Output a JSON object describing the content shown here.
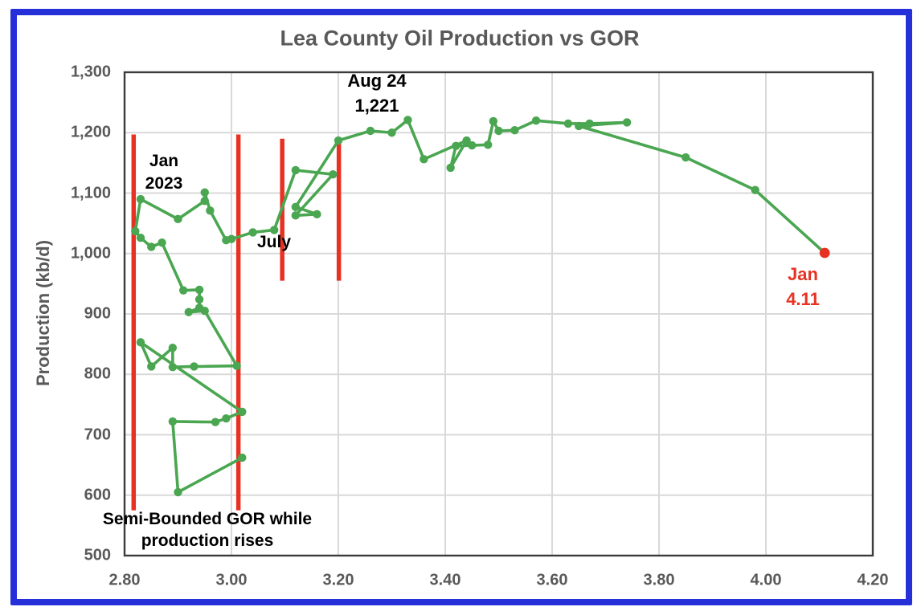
{
  "frame": {
    "border_color": "#2630d9"
  },
  "chart_data": {
    "type": "scatter",
    "connected": true,
    "title": "Lea County Oil Production vs GOR",
    "xlabel": "",
    "ylabel": "Production (kb/d)",
    "xlim": [
      2.8,
      4.2
    ],
    "ylim": [
      500,
      1300
    ],
    "grid": true,
    "x_ticks": {
      "values": [
        2.8,
        3.0,
        3.2,
        3.4,
        3.6,
        3.8,
        4.0,
        4.2
      ],
      "labels": [
        "2.80",
        "3.00",
        "3.20",
        "3.40",
        "3.60",
        "3.80",
        "4.00",
        "4.20"
      ]
    },
    "y_ticks": {
      "values": [
        500,
        600,
        700,
        800,
        900,
        1000,
        1100,
        1200,
        1300
      ],
      "labels": [
        "500",
        "600",
        "700",
        "800",
        "900",
        "1,000",
        "1,100",
        "1,200",
        "1,300"
      ]
    },
    "series": [
      {
        "color": "#4aa651",
        "line_width": 3.6,
        "marker_radius": 5.2,
        "points": [
          [
            3.02,
            662
          ],
          [
            2.9,
            605
          ],
          [
            2.89,
            722
          ],
          [
            2.97,
            721
          ],
          [
            2.99,
            727
          ],
          [
            3.02,
            738
          ],
          [
            2.83,
            853
          ],
          [
            2.85,
            813
          ],
          [
            2.89,
            844
          ],
          [
            2.89,
            812
          ],
          [
            2.93,
            813
          ],
          [
            3.01,
            814
          ],
          [
            2.95,
            905
          ],
          [
            2.92,
            903
          ],
          [
            2.94,
            910
          ],
          [
            2.94,
            924
          ],
          [
            2.94,
            940
          ],
          [
            2.91,
            939
          ],
          [
            2.87,
            1018
          ],
          [
            2.85,
            1011
          ],
          [
            2.83,
            1026
          ],
          [
            2.82,
            1037
          ],
          [
            2.83,
            1090
          ],
          [
            2.9,
            1057
          ],
          [
            2.95,
            1087
          ],
          [
            2.95,
            1101
          ],
          [
            2.96,
            1071
          ],
          [
            2.99,
            1022
          ],
          [
            3.0,
            1024
          ],
          [
            3.04,
            1035
          ],
          [
            3.08,
            1039
          ],
          [
            3.12,
            1138
          ],
          [
            3.19,
            1131
          ],
          [
            3.12,
            1063
          ],
          [
            3.16,
            1065
          ],
          [
            3.12,
            1077
          ],
          [
            3.2,
            1187
          ],
          [
            3.26,
            1203
          ],
          [
            3.3,
            1200
          ],
          [
            3.33,
            1221
          ],
          [
            3.36,
            1156
          ],
          [
            3.44,
            1187
          ],
          [
            3.41,
            1142
          ],
          [
            3.42,
            1178
          ],
          [
            3.45,
            1179
          ],
          [
            3.48,
            1180
          ],
          [
            3.49,
            1219
          ],
          [
            3.5,
            1203
          ],
          [
            3.53,
            1204
          ],
          [
            3.57,
            1220
          ],
          [
            3.63,
            1215
          ],
          [
            3.67,
            1215
          ],
          [
            3.74,
            1217
          ],
          [
            3.65,
            1211
          ],
          [
            3.85,
            1159
          ],
          [
            3.98,
            1105
          ],
          [
            4.11,
            1001
          ]
        ],
        "last_point_color": "#e73223",
        "last_point_radius": 6.4
      }
    ],
    "red_guide_lines": [
      {
        "x": 2.817,
        "y_from": 575,
        "y_to": 1197
      },
      {
        "x": 3.013,
        "y_from": 575,
        "y_to": 1197
      },
      {
        "x": 3.095,
        "y_from": 955,
        "y_to": 1190
      },
      {
        "x": 3.201,
        "y_from": 955,
        "y_to": 1190
      }
    ],
    "colors": {
      "grid": "#d9d9d9",
      "plot_border": "#3b3b3b",
      "axis_text": "#595959",
      "series_green": "#4aa651",
      "guide_red": "#e73223"
    }
  },
  "annotations": {
    "jan_2023": {
      "lines": [
        "Jan",
        "2023"
      ],
      "color": "#000000"
    },
    "july": {
      "lines": [
        "July"
      ],
      "color": "#000000"
    },
    "aug_24": {
      "lines": [
        "Aug 24",
        "1,221"
      ],
      "color": "#000000"
    },
    "jan_gor": {
      "lines": [
        "Jan",
        "4.11"
      ],
      "color": "#e73223"
    },
    "semi_bounded": {
      "lines": [
        "Semi-Bounded GOR while",
        "production rises"
      ],
      "color": "#000000"
    }
  }
}
